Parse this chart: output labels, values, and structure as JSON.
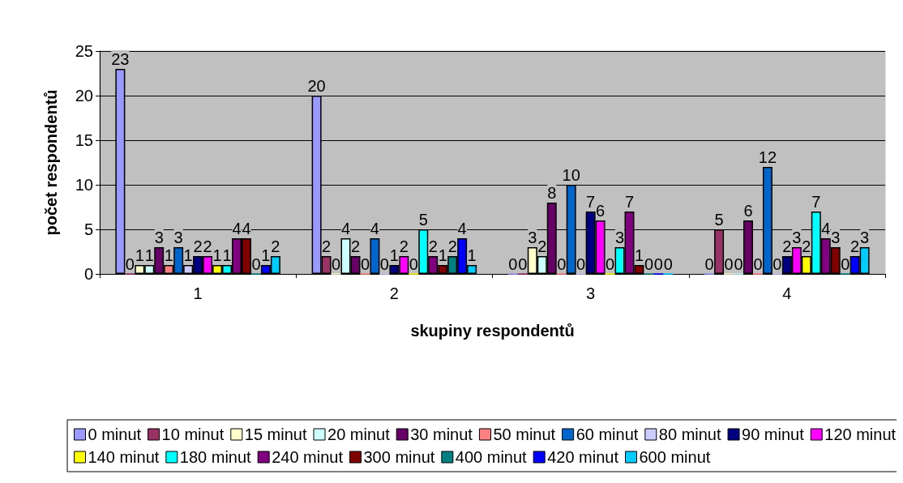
{
  "chart_data": {
    "type": "bar",
    "xlabel": "skupiny respondentů",
    "ylabel": "počet respondentů",
    "categories": [
      "1",
      "2",
      "3",
      "4"
    ],
    "ylim": [
      0,
      25
    ],
    "yticks": [
      0,
      5,
      10,
      15,
      20,
      25
    ],
    "grid": "y",
    "legend": "bottom",
    "data_labels": true,
    "series": [
      {
        "name": "0 minut",
        "color": "#9999ff",
        "values": [
          23,
          20,
          0,
          0
        ]
      },
      {
        "name": "10 minut",
        "color": "#993366",
        "values": [
          0,
          2,
          0,
          5
        ]
      },
      {
        "name": "15 minut",
        "color": "#ffffcc",
        "values": [
          1,
          0,
          3,
          0
        ]
      },
      {
        "name": "20 minut",
        "color": "#ccffff",
        "values": [
          1,
          4,
          2,
          0
        ]
      },
      {
        "name": "30 minut",
        "color": "#660066",
        "values": [
          3,
          2,
          8,
          6
        ]
      },
      {
        "name": "50 minut",
        "color": "#ff8080",
        "values": [
          1,
          0,
          0,
          0
        ]
      },
      {
        "name": "60 minut",
        "color": "#0066cc",
        "values": [
          3,
          4,
          10,
          12
        ]
      },
      {
        "name": "80 minut",
        "color": "#ccccff",
        "values": [
          1,
          0,
          0,
          0
        ]
      },
      {
        "name": "90 minut",
        "color": "#000080",
        "values": [
          2,
          1,
          7,
          2
        ]
      },
      {
        "name": "120 minut",
        "color": "#ff00ff",
        "values": [
          2,
          2,
          6,
          3
        ]
      },
      {
        "name": "140 minut",
        "color": "#ffff00",
        "values": [
          1,
          0,
          0,
          2
        ]
      },
      {
        "name": "180 minut",
        "color": "#00ffff",
        "values": [
          1,
          5,
          3,
          7
        ]
      },
      {
        "name": "240 minut",
        "color": "#800080",
        "values": [
          4,
          2,
          7,
          4
        ]
      },
      {
        "name": "300 minut",
        "color": "#800000",
        "values": [
          4,
          1,
          1,
          3
        ]
      },
      {
        "name": "400 minut",
        "color": "#008080",
        "values": [
          0,
          2,
          0,
          0
        ]
      },
      {
        "name": "420 minut",
        "color": "#0000ff",
        "values": [
          1,
          4,
          0,
          2
        ]
      },
      {
        "name": "600 minut",
        "color": "#00ccff",
        "values": [
          2,
          1,
          0,
          3
        ]
      }
    ]
  }
}
